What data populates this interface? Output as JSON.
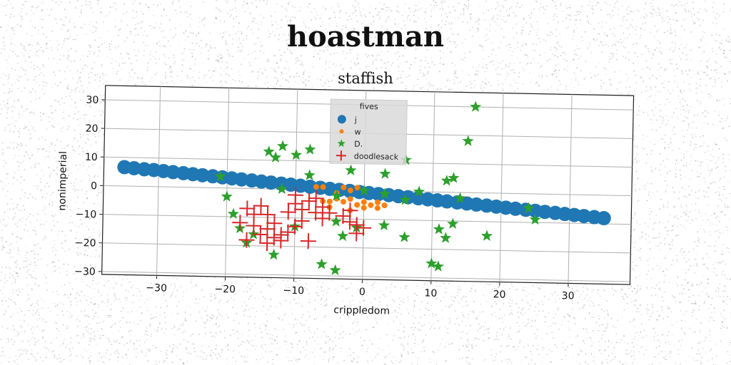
{
  "figure": {
    "suptitle": "hoastman"
  },
  "chart_data": {
    "type": "scatter",
    "title": "staffish",
    "xlabel": "crippledom",
    "ylabel": "nonimperial",
    "xlim": [
      -38,
      39
    ],
    "ylim": [
      -31,
      35
    ],
    "xticks": [
      -30,
      -20,
      -10,
      0,
      10,
      20,
      30
    ],
    "yticks": [
      -30,
      -20,
      -10,
      0,
      10,
      20,
      30
    ],
    "grid": true,
    "legend": {
      "title": "fives",
      "placement": "top-center"
    },
    "series": [
      {
        "name": "j",
        "marker": "circle",
        "color": "#1f77b4",
        "points": [
          [
            -35,
            6.6
          ],
          [
            -33.6,
            6.3
          ],
          [
            -32.1,
            6
          ],
          [
            -30.7,
            5.8
          ],
          [
            -29.3,
            5.5
          ],
          [
            -27.9,
            5.2
          ],
          [
            -26.4,
            4.9
          ],
          [
            -25,
            4.6
          ],
          [
            -23.6,
            4.3
          ],
          [
            -22.1,
            4
          ],
          [
            -20.7,
            3.7
          ],
          [
            -19.3,
            3.4
          ],
          [
            -17.9,
            3.1
          ],
          [
            -16.4,
            2.8
          ],
          [
            -15,
            2.5
          ],
          [
            -13.6,
            2.2
          ],
          [
            -12.1,
            1.9
          ],
          [
            -10.7,
            1.6
          ],
          [
            -9.3,
            1.3
          ],
          [
            -7.9,
            1
          ],
          [
            -6.4,
            0.7
          ],
          [
            -5,
            0.4
          ],
          [
            -3.6,
            0.1
          ],
          [
            -2.1,
            -0.2
          ],
          [
            -0.7,
            -0.5
          ],
          [
            0.7,
            -0.8
          ],
          [
            2.1,
            -1.1
          ],
          [
            3.6,
            -1.4
          ],
          [
            5,
            -1.7
          ],
          [
            6.4,
            -2
          ],
          [
            7.9,
            -2.3
          ],
          [
            9.3,
            -2.6
          ],
          [
            10.7,
            -2.9
          ],
          [
            12.1,
            -3.2
          ],
          [
            13.6,
            -3.5
          ],
          [
            15,
            -3.8
          ],
          [
            16.4,
            -4.1
          ],
          [
            17.9,
            -4.4
          ],
          [
            19.3,
            -4.7
          ],
          [
            20.7,
            -5
          ],
          [
            22.1,
            -5.3
          ],
          [
            23.6,
            -5.6
          ],
          [
            25,
            -5.9
          ],
          [
            26.4,
            -6.2
          ],
          [
            27.9,
            -6.5
          ],
          [
            29.3,
            -6.8
          ],
          [
            30.7,
            -7.1
          ],
          [
            32.1,
            -7.4
          ],
          [
            33.6,
            -7.7
          ],
          [
            35,
            -8
          ]
        ]
      },
      {
        "name": "w",
        "marker": "circle-small",
        "color": "#ff7f0e",
        "points": [
          [
            -7,
            1
          ],
          [
            -6,
            1
          ],
          [
            -4,
            -1
          ],
          [
            -3,
            1
          ],
          [
            -2,
            0
          ],
          [
            -1,
            1
          ],
          [
            -5,
            -4
          ],
          [
            -4,
            -3
          ],
          [
            -3,
            -4
          ],
          [
            -2,
            -3
          ],
          [
            -6,
            -4
          ],
          [
            -1,
            -5
          ],
          [
            0,
            -6
          ],
          [
            1,
            -5
          ],
          [
            2,
            -6
          ],
          [
            3,
            -5
          ],
          [
            -2,
            -7
          ],
          [
            -5,
            -6
          ],
          [
            0,
            -4
          ],
          [
            2,
            -4
          ]
        ]
      },
      {
        "name": "D.",
        "marker": "star",
        "color": "#2ca02c",
        "points": [
          [
            16,
            30
          ],
          [
            15,
            18
          ],
          [
            -14,
            13
          ],
          [
            -12,
            15
          ],
          [
            -13,
            11
          ],
          [
            -10,
            12
          ],
          [
            -8,
            14
          ],
          [
            6,
            11
          ],
          [
            -2,
            7
          ],
          [
            3,
            6
          ],
          [
            -8,
            5
          ],
          [
            12,
            4
          ],
          [
            -21,
            4
          ],
          [
            -12,
            0
          ],
          [
            -4,
            -2
          ],
          [
            0,
            0
          ],
          [
            3,
            -1
          ],
          [
            -20,
            -3
          ],
          [
            6,
            -3
          ],
          [
            8,
            0
          ],
          [
            -19,
            -9
          ],
          [
            -18,
            -14
          ],
          [
            -16,
            -16
          ],
          [
            -17,
            -19
          ],
          [
            -13,
            -23
          ],
          [
            -10,
            -13
          ],
          [
            -4,
            -11
          ],
          [
            -3,
            -16
          ],
          [
            -1,
            -13
          ],
          [
            3,
            -12
          ],
          [
            6,
            -16
          ],
          [
            11,
            -13
          ],
          [
            12,
            -16
          ],
          [
            13,
            -11
          ],
          [
            18,
            -15
          ],
          [
            10,
            -25
          ],
          [
            11,
            -26
          ],
          [
            -6,
            -26
          ],
          [
            -4,
            -28
          ],
          [
            24,
            -5
          ],
          [
            25,
            -9
          ],
          [
            13,
            5
          ],
          [
            14,
            -2
          ]
        ]
      },
      {
        "name": "doodlesack",
        "marker": "plus",
        "color": "#d62728",
        "points": [
          [
            -17,
            -7
          ],
          [
            -16,
            -9
          ],
          [
            -15,
            -6
          ],
          [
            -14,
            -9
          ],
          [
            -18,
            -12
          ],
          [
            -16,
            -13
          ],
          [
            -14,
            -14
          ],
          [
            -13,
            -17
          ],
          [
            -12,
            -18
          ],
          [
            -14,
            -19
          ],
          [
            -17,
            -18
          ],
          [
            -15,
            -16
          ],
          [
            -13,
            -12
          ],
          [
            -11,
            -8
          ],
          [
            -10,
            -5
          ],
          [
            -9,
            -7
          ],
          [
            -8,
            -4
          ],
          [
            -7,
            -3
          ],
          [
            -6,
            -6
          ],
          [
            -9,
            -11
          ],
          [
            -10,
            -13
          ],
          [
            -11,
            -15
          ],
          [
            -12,
            -16
          ],
          [
            -8,
            -18
          ],
          [
            -10,
            -2
          ],
          [
            -7,
            -8
          ],
          [
            -6,
            -10
          ],
          [
            -5,
            -8
          ],
          [
            -3,
            -9
          ],
          [
            -2,
            -7
          ],
          [
            -1,
            -12
          ],
          [
            0,
            -13
          ],
          [
            -1,
            -15
          ],
          [
            -2,
            -11
          ]
        ]
      }
    ]
  }
}
